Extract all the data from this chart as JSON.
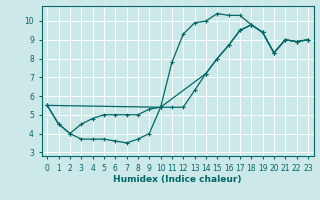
{
  "xlabel": "Humidex (Indice chaleur)",
  "bg_color": "#cde8e8",
  "grid_color": "#ffffff",
  "line_color": "#006868",
  "xlim": [
    -0.5,
    23.5
  ],
  "ylim": [
    2.8,
    10.8
  ],
  "xticks": [
    0,
    1,
    2,
    3,
    4,
    5,
    6,
    7,
    8,
    9,
    10,
    11,
    12,
    13,
    14,
    15,
    16,
    17,
    18,
    19,
    20,
    21,
    22,
    23
  ],
  "yticks": [
    3,
    4,
    5,
    6,
    7,
    8,
    9,
    10
  ],
  "line1_x": [
    0,
    1,
    2,
    3,
    4,
    5,
    6,
    7,
    8,
    9,
    10,
    11,
    12,
    13,
    14,
    15,
    16,
    17,
    18,
    19,
    20,
    21,
    22,
    23
  ],
  "line1_y": [
    5.5,
    4.5,
    4.0,
    3.7,
    3.7,
    3.7,
    3.6,
    3.5,
    3.7,
    4.0,
    5.4,
    7.8,
    9.3,
    9.9,
    10.0,
    10.4,
    10.3,
    10.3,
    9.8,
    9.4,
    8.3,
    9.0,
    8.9,
    9.0
  ],
  "line2_x": [
    0,
    1,
    2,
    3,
    4,
    5,
    6,
    7,
    8,
    9,
    10,
    11,
    12,
    13,
    14,
    15,
    16,
    17,
    18,
    19,
    20,
    21,
    22,
    23
  ],
  "line2_y": [
    5.5,
    4.5,
    4.0,
    4.5,
    4.8,
    5.0,
    5.0,
    5.0,
    5.0,
    5.3,
    5.4,
    5.4,
    5.4,
    6.3,
    7.2,
    8.0,
    8.7,
    9.5,
    9.8,
    9.4,
    8.3,
    9.0,
    8.9,
    9.0
  ],
  "line3_x": [
    0,
    10,
    14,
    15,
    16,
    17,
    18,
    19,
    20,
    21,
    22,
    23
  ],
  "line3_y": [
    5.5,
    5.4,
    7.2,
    8.0,
    8.7,
    9.5,
    9.8,
    9.4,
    8.3,
    9.0,
    8.9,
    9.0
  ]
}
